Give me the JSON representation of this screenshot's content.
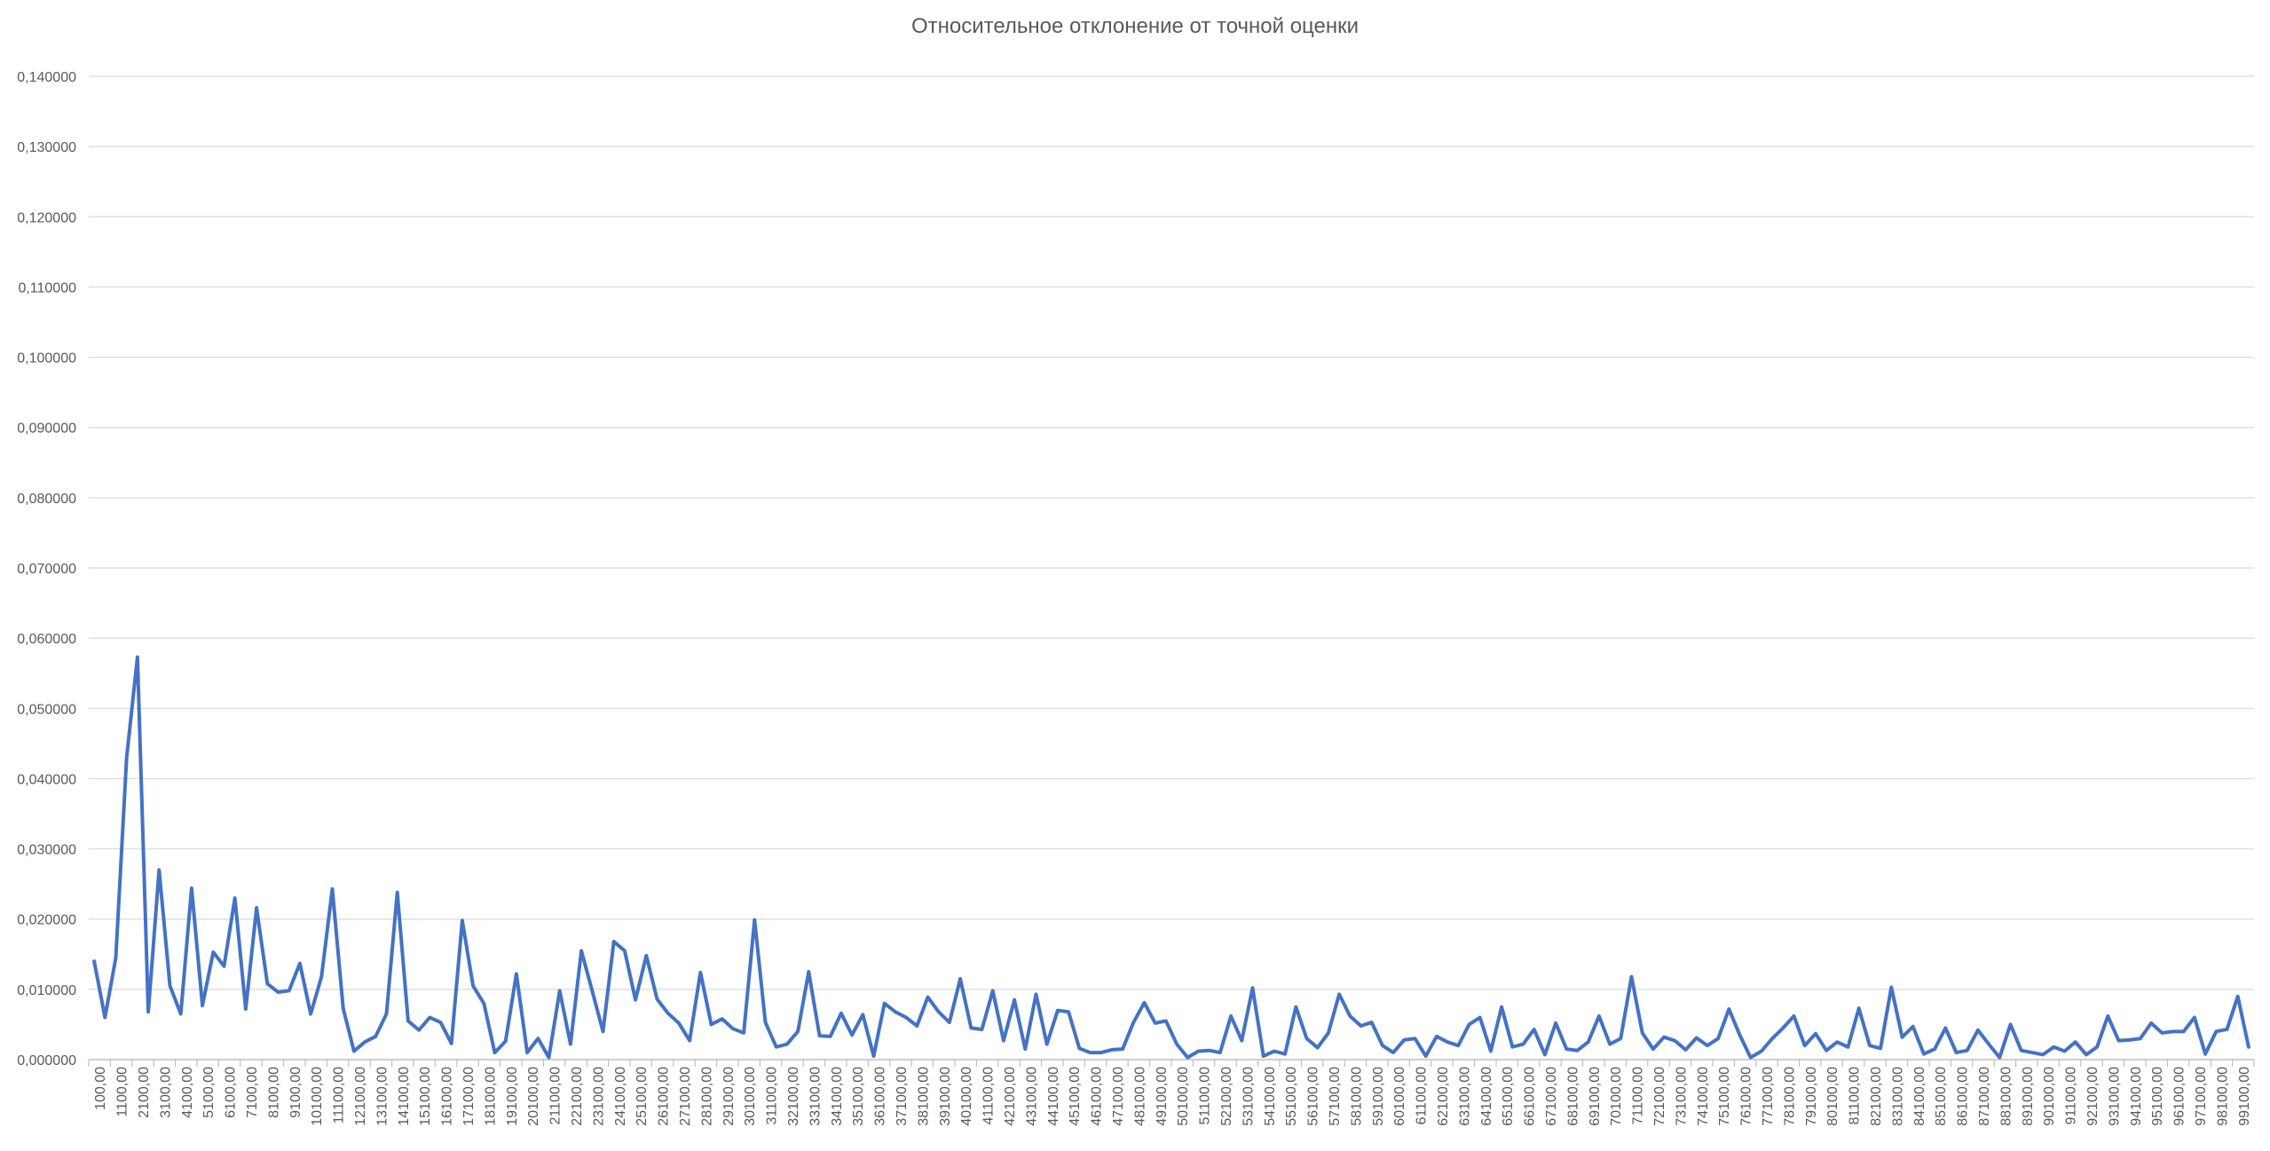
{
  "chart_data": {
    "type": "line",
    "title": "Относительное отклонение от точной оценки",
    "xlabel": "",
    "ylabel": "",
    "ylim": [
      0,
      0.14
    ],
    "y_ticks": [
      0,
      0.01,
      0.02,
      0.03,
      0.04,
      0.05,
      0.06,
      0.07,
      0.08,
      0.09,
      0.1,
      0.11,
      0.12,
      0.13,
      0.14
    ],
    "y_tick_labels": [
      "0,000000",
      "0,010000",
      "0,020000",
      "0,030000",
      "0,040000",
      "0,050000",
      "0,060000",
      "0,070000",
      "0,080000",
      "0,090000",
      "0,100000",
      "0,110000",
      "0,120000",
      "0,130000",
      "0,140000"
    ],
    "x_tick_labels": [
      "100,00",
      "1100,00",
      "2100,00",
      "3100,00",
      "4100,00",
      "5100,00",
      "6100,00",
      "7100,00",
      "8100,00",
      "9100,00",
      "10100,00",
      "11100,00",
      "12100,00",
      "13100,00",
      "14100,00",
      "15100,00",
      "16100,00",
      "17100,00",
      "18100,00",
      "19100,00",
      "20100,00",
      "21100,00",
      "22100,00",
      "23100,00",
      "24100,00",
      "25100,00",
      "26100,00",
      "27100,00",
      "28100,00",
      "29100,00",
      "30100,00",
      "31100,00",
      "32100,00",
      "33100,00",
      "34100,00",
      "35100,00",
      "36100,00",
      "37100,00",
      "38100,00",
      "39100,00",
      "40100,00",
      "41100,00",
      "42100,00",
      "43100,00",
      "44100,00",
      "45100,00",
      "46100,00",
      "47100,00",
      "48100,00",
      "49100,00",
      "50100,00",
      "51100,00",
      "52100,00",
      "53100,00",
      "54100,00",
      "55100,00",
      "56100,00",
      "57100,00",
      "58100,00",
      "59100,00",
      "60100,00",
      "61100,00",
      "62100,00",
      "63100,00",
      "64100,00",
      "65100,00",
      "66100,00",
      "67100,00",
      "68100,00",
      "69100,00",
      "70100,00",
      "71100,00",
      "72100,00",
      "73100,00",
      "74100,00",
      "75100,00",
      "76100,00",
      "77100,00",
      "78100,00",
      "79100,00",
      "80100,00",
      "81100,00",
      "82100,00",
      "83100,00",
      "84100,00",
      "85100,00",
      "86100,00",
      "87100,00",
      "88100,00",
      "89100,00",
      "90100,00",
      "91100,00",
      "92100,00",
      "93100,00",
      "94100,00",
      "95100,00",
      "96100,00",
      "97100,00",
      "98100,00",
      "99100,00"
    ],
    "grid": true,
    "legend": "none",
    "line_color": "#4472C4",
    "series": [
      {
        "values": [
          0.014,
          0.006,
          0.0145,
          0.043,
          0.0573,
          0.0068,
          0.027,
          0.0105,
          0.0065,
          0.0244,
          0.0077,
          0.0153,
          0.0133,
          0.023,
          0.0072,
          0.0216,
          0.0108,
          0.0096,
          0.0098,
          0.0137,
          0.0065,
          0.0118,
          0.0243,
          0.0073,
          0.0012,
          0.0025,
          0.0033,
          0.0065,
          0.0238,
          0.0055,
          0.0042,
          0.006,
          0.0053,
          0.0023,
          0.0198,
          0.0105,
          0.008,
          0.001,
          0.0026,
          0.0122,
          0.001,
          0.003,
          0.0003,
          0.0098,
          0.0022,
          0.0155,
          0.0098,
          0.004,
          0.0168,
          0.0155,
          0.0085,
          0.0148,
          0.0086,
          0.0066,
          0.0052,
          0.0027,
          0.0124,
          0.005,
          0.0058,
          0.0044,
          0.0038,
          0.0199,
          0.0053,
          0.0018,
          0.0022,
          0.004,
          0.0125,
          0.0034,
          0.0033,
          0.0066,
          0.0035,
          0.0064,
          0.0005,
          0.008,
          0.0068,
          0.006,
          0.0048,
          0.0089,
          0.0068,
          0.0053,
          0.0115,
          0.0045,
          0.0043,
          0.0098,
          0.0027,
          0.0085,
          0.0015,
          0.0093,
          0.0022,
          0.007,
          0.0068,
          0.0016,
          0.001,
          0.001,
          0.0014,
          0.0015,
          0.0053,
          0.0081,
          0.0052,
          0.0055,
          0.0022,
          0.0003,
          0.0012,
          0.0013,
          0.001,
          0.0062,
          0.0027,
          0.0102,
          0.0005,
          0.0012,
          0.0008,
          0.0075,
          0.003,
          0.0017,
          0.0038,
          0.0093,
          0.0062,
          0.0048,
          0.0053,
          0.002,
          0.001,
          0.0028,
          0.003,
          0.0005,
          0.0033,
          0.0025,
          0.002,
          0.005,
          0.006,
          0.0012,
          0.0075,
          0.0018,
          0.0022,
          0.0043,
          0.0007,
          0.0052,
          0.0015,
          0.0013,
          0.0025,
          0.0062,
          0.0022,
          0.003,
          0.0118,
          0.0038,
          0.0015,
          0.0032,
          0.0027,
          0.0014,
          0.0031,
          0.002,
          0.003,
          0.0072,
          0.0035,
          0.0003,
          0.0012,
          0.003,
          0.0045,
          0.0062,
          0.002,
          0.0037,
          0.0013,
          0.0025,
          0.0018,
          0.0073,
          0.002,
          0.0016,
          0.0103,
          0.0032,
          0.0047,
          0.0008,
          0.0015,
          0.0045,
          0.001,
          0.0013,
          0.0042,
          0.0022,
          0.0003,
          0.005,
          0.0013,
          0.001,
          0.0007,
          0.0018,
          0.0012,
          0.0025,
          0.0007,
          0.0018,
          0.0062,
          0.0027,
          0.0028,
          0.003,
          0.0052,
          0.0038,
          0.004,
          0.004,
          0.006,
          0.0008,
          0.004,
          0.0043,
          0.009,
          0.0018
        ]
      }
    ]
  }
}
